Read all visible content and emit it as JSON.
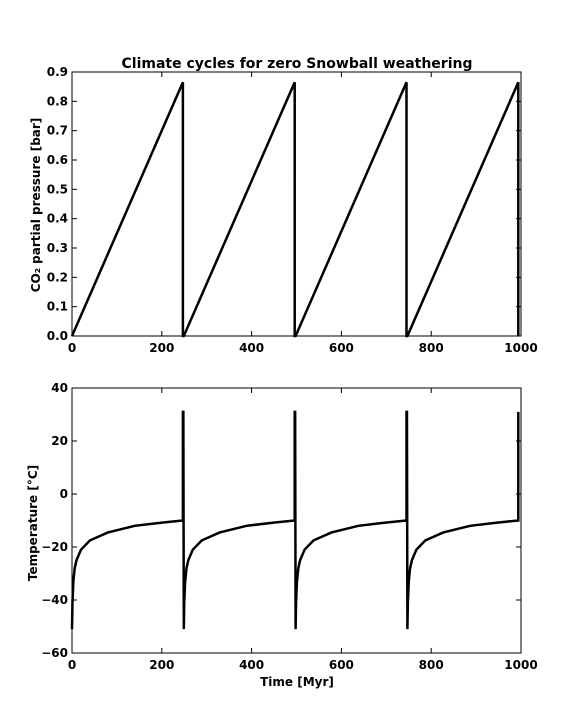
{
  "chart_data": [
    {
      "type": "line",
      "title": "Climate cycles for zero Snowball weathering",
      "xlabel": "",
      "ylabel": "CO₂ partial pressure [bar]",
      "xlim": [
        0,
        1000
      ],
      "ylim": [
        0,
        0.9
      ],
      "xticks": [
        "0",
        "200",
        "400",
        "600",
        "800",
        "1000"
      ],
      "yticks": [
        "0.0",
        "0.1",
        "0.2",
        "0.3",
        "0.4",
        "0.5",
        "0.6",
        "0.7",
        "0.8",
        "0.9"
      ],
      "grid": false,
      "color": "#000000",
      "series": [
        {
          "x": [
            0,
            247,
            247,
            249,
            496,
            496,
            498,
            745,
            745,
            747,
            994,
            994
          ],
          "y": [
            0.0,
            0.865,
            0.0,
            0.0,
            0.865,
            0.0,
            0.0,
            0.865,
            0.0,
            0.0,
            0.865,
            0.0
          ]
        }
      ]
    },
    {
      "type": "line",
      "title": "",
      "xlabel": "Time [Myr]",
      "ylabel": "Temperature [°C]",
      "xlim": [
        0,
        1000
      ],
      "ylim": [
        -60,
        40
      ],
      "xticks": [
        "0",
        "200",
        "400",
        "600",
        "800",
        "1000"
      ],
      "yticks": [
        "−60",
        "−40",
        "−20",
        "0",
        "20",
        "40"
      ],
      "grid": false,
      "color": "#000000",
      "series": [
        {
          "x": [
            0,
            1,
            3,
            6,
            10,
            20,
            40,
            80,
            140,
            200,
            247,
            247,
            248,
            249,
            250,
            252,
            255,
            259,
            269,
            289,
            329,
            389,
            449,
            496,
            496,
            497,
            498,
            499,
            501,
            504,
            508,
            518,
            538,
            578,
            638,
            698,
            745,
            745,
            746,
            747,
            748,
            750,
            753,
            757,
            767,
            787,
            827,
            887,
            947,
            994,
            994
          ],
          "y": [
            -51,
            -41,
            -33,
            -28,
            -25,
            -21,
            -17.5,
            -14.5,
            -12,
            -10.8,
            -10,
            31,
            31,
            -51,
            -41,
            -33,
            -28,
            -25,
            -21,
            -17.5,
            -14.5,
            -12,
            -10.8,
            -10,
            31,
            31,
            -51,
            -41,
            -33,
            -28,
            -25,
            -21,
            -17.5,
            -14.5,
            -12,
            -10.8,
            -10,
            31,
            31,
            -51,
            -41,
            -33,
            -28,
            -25,
            -21,
            -17.5,
            -14.5,
            -12,
            -10.8,
            -10,
            31
          ]
        }
      ]
    }
  ]
}
